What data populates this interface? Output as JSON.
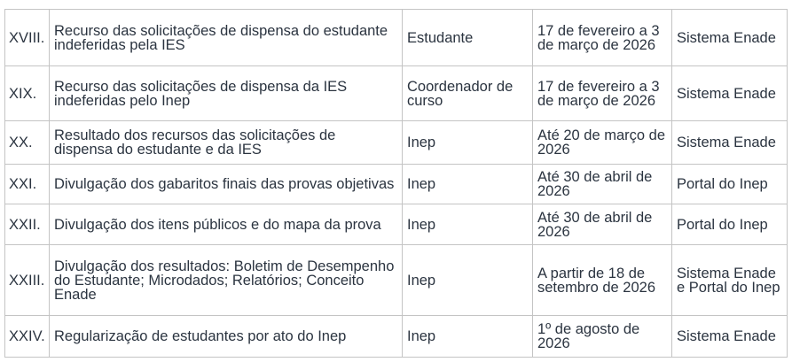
{
  "rows": [
    {
      "num": "XVIII.",
      "activity": "Recurso das solicitações de dispensa do estudante indeferidas pela IES",
      "responsible": "Estudante",
      "period": "17 de fevereiro a 3 de março de 2026",
      "where": "Sistema Enade"
    },
    {
      "num": "XIX.",
      "activity": "Recurso das solicitações de dispensa da IES indeferidas pelo Inep",
      "responsible": "Coordenador de curso",
      "period": "17 de fevereiro a 3 de março de 2026",
      "where": "Sistema Enade"
    },
    {
      "num": "XX.",
      "activity": "Resultado dos recursos das solicitações de dispensa do estudante e da IES",
      "responsible": "Inep",
      "period": "Até 20 de março de 2026",
      "where": "Sistema Enade"
    },
    {
      "num": "XXI.",
      "activity": "Divulgação dos gabaritos finais das provas objetivas",
      "responsible": "Inep",
      "period": "Até 30 de abril de 2026",
      "where": "Portal do Inep"
    },
    {
      "num": "XXII.",
      "activity": "Divulgação dos itens públicos e do mapa da prova",
      "responsible": "Inep",
      "period": "Até 30 de abril de 2026",
      "where": "Portal do Inep"
    },
    {
      "num": "XXIII.",
      "activity": "Divulgação dos resultados: Boletim de Desempenho do Estudante; Microdados; Relatórios; Conceito Enade",
      "responsible": "Inep",
      "period": "A partir de 18 de setembro de 2026",
      "where": "Sistema Enade e Portal do Inep"
    },
    {
      "num": "XXIV.",
      "activity": "Regularização de estudantes por ato do Inep",
      "responsible": "Inep",
      "period": "1º de agosto de 2026",
      "where": "Sistema Enade"
    }
  ]
}
